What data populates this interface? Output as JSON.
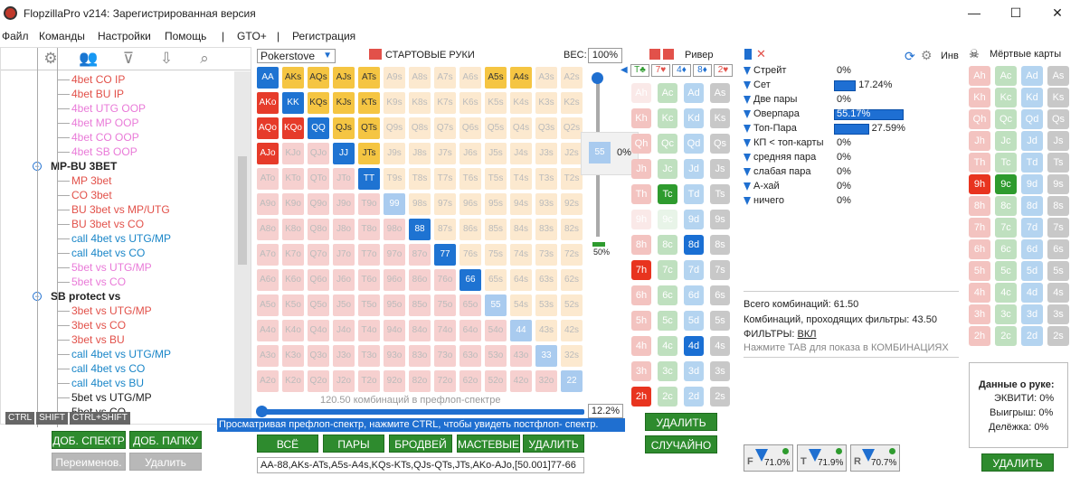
{
  "window": {
    "title": "FlopzillaPro v214: Зарегистрированная версия"
  },
  "menu": [
    "Файл",
    "Команды",
    "Настройки",
    "Помощь",
    "|",
    "GTO+",
    "|",
    "Регистрация"
  ],
  "tree": [
    {
      "t": "4bet CO IP",
      "c": "#e2514a",
      "x": 78
    },
    {
      "t": "4bet BU IP",
      "c": "#e2514a",
      "x": 78
    },
    {
      "t": "4bet UTG OOP",
      "c": "#e97ad8",
      "x": 78
    },
    {
      "t": "4bet MP OOP",
      "c": "#e97ad8",
      "x": 78
    },
    {
      "t": "4bet CO OOP",
      "c": "#e97ad8",
      "x": 78
    },
    {
      "t": "4bet SB OOP",
      "c": "#e97ad8",
      "x": 78
    },
    {
      "t": "MP-BU 3BET",
      "c": "#222",
      "x": 55,
      "b": true,
      "group": true
    },
    {
      "t": "MP 3bet",
      "c": "#e2514a",
      "x": 78
    },
    {
      "t": "CO 3bet",
      "c": "#e2514a",
      "x": 78
    },
    {
      "t": "BU 3bet vs MP/UTG",
      "c": "#e2514a",
      "x": 78
    },
    {
      "t": "BU 3bet vs CO",
      "c": "#e2514a",
      "x": 78
    },
    {
      "t": "call 4bet vs UTG/MP",
      "c": "#1a86c8",
      "x": 78
    },
    {
      "t": "call 4bet vs CO",
      "c": "#1a86c8",
      "x": 78
    },
    {
      "t": "5bet vs UTG/MP",
      "c": "#e97ad8",
      "x": 78
    },
    {
      "t": "5bet vs CO",
      "c": "#e97ad8",
      "x": 78
    },
    {
      "t": "SB protect vs",
      "c": "#222",
      "x": 55,
      "b": true,
      "group": true
    },
    {
      "t": "3bet vs UTG/MP",
      "c": "#e2514a",
      "x": 78
    },
    {
      "t": "3bet vs CO",
      "c": "#e2514a",
      "x": 78
    },
    {
      "t": "3bet vs BU",
      "c": "#e2514a",
      "x": 78
    },
    {
      "t": "call 4bet vs UTG/MP",
      "c": "#1a86c8",
      "x": 78
    },
    {
      "t": "call 4bet vs CO",
      "c": "#1a86c8",
      "x": 78
    },
    {
      "t": "call 4bet vs BU",
      "c": "#1a86c8",
      "x": 78
    },
    {
      "t": "5bet vs UTG/MP",
      "c": "#222",
      "x": 78
    },
    {
      "t": "5bet vs CO",
      "c": "#222",
      "x": 78
    }
  ],
  "keys": [
    "CTRL",
    "SHIFT",
    "CTRL+SHIFT"
  ],
  "left_buttons": {
    "add_spectrum": "ДОБ. СПЕКТР",
    "add_folder": "ДОБ. ПАПКУ",
    "rename": "Переименов.",
    "delete": "Удалить"
  },
  "equity_select": "Pokerstove",
  "start_hands": "СТАРТОВЫЕ РУКИ",
  "weight_label": "ВЕС:",
  "weight_value": "100%",
  "ranks": [
    "A",
    "K",
    "Q",
    "J",
    "T",
    "9",
    "8",
    "7",
    "6",
    "5",
    "4",
    "3",
    "2"
  ],
  "selected": {
    "AA": "B",
    "KK": "B",
    "QQ": "B",
    "JJ": "B",
    "TT": "B",
    "99": "L",
    "88": "B",
    "77": "B",
    "66": "B",
    "55": "L",
    "44": "L",
    "33": "L",
    "22": "L",
    "AKs": "Y",
    "AQs": "Y",
    "AJs": "Y",
    "ATs": "Y",
    "A5s": "Y",
    "A4s": "Y",
    "KQs": "Y",
    "KJs": "Y",
    "KTs": "Y",
    "QJs": "Y",
    "QTs": "Y",
    "JTs": "Y",
    "AKo": "R",
    "AQo": "R",
    "AJo": "R",
    "KQo": "R"
  },
  "slider_popup": {
    "value": "55",
    "pct": "0%"
  },
  "slider_pct": "50%",
  "combos_text": "120.50 комбинаций в префлоп-спектре",
  "combos_pct": "12.2%",
  "hint": "Просматривая префлоп-спектр, нажмите CTRL, чтобы увидеть постфлоп- спектр.",
  "range_buttons": [
    "ВСЁ",
    "ПАРЫ",
    "БРОДВЕЙ",
    "МАСТЕВЫЕ",
    "УДАЛИТЬ"
  ],
  "range_text": "AA-88,AKs-ATs,A5s-A4s,KQs-KTs,QJs-QTs,JTs,AKo-AJo,[50.001]77-66",
  "board": {
    "label": "Ривер",
    "cards": [
      "T♣",
      "7♥",
      "4♦",
      "8♦",
      "2♥"
    ]
  },
  "river_delete": "УДАЛИТЬ",
  "river_random": "СЛУЧАЙНО",
  "stats_header": "Инв",
  "stats": [
    {
      "label": "Стрейт",
      "v": "0%",
      "w": 0
    },
    {
      "label": "Сет",
      "v": "17.24%",
      "w": 17.24
    },
    {
      "label": "Две пары",
      "v": "0%",
      "w": 0
    },
    {
      "label": "Оверпара",
      "v": "55.17%",
      "w": 55.17
    },
    {
      "label": "Топ-Пара",
      "v": "27.59%",
      "w": 27.59
    },
    {
      "label": "КП < топ-карты",
      "v": "0%",
      "w": 0
    },
    {
      "label": "средняя пара",
      "v": "0%",
      "w": 0
    },
    {
      "label": "слабая пара",
      "v": "0%",
      "w": 0
    },
    {
      "label": "А-хай",
      "v": "0%",
      "w": 0
    },
    {
      "label": "ничего",
      "v": "0%",
      "w": 0
    }
  ],
  "summary": {
    "total": "Всего комбинаций: 61.50",
    "passing": "Комбинаций, проходящих фильтры: 43.50",
    "filters": "ФИЛЬТРЫ:",
    "filters_on": "ВКЛ",
    "tab_hint": "Нажмите TAB для показа в КОМБИНАЦИЯХ"
  },
  "filter_badges": [
    {
      "l": "F",
      "v": "71.0%"
    },
    {
      "l": "T",
      "v": "71.9%"
    },
    {
      "l": "R",
      "v": "70.7%"
    }
  ],
  "dead": {
    "title": "Мёртвые карты",
    "delete": "УДАЛИТЬ"
  },
  "hand_data": {
    "title": "Данные о руке:",
    "equity": "ЭКВИТИ: 0%",
    "win": "Выигрыш: 0%",
    "split": "Делёжка: 0%"
  }
}
